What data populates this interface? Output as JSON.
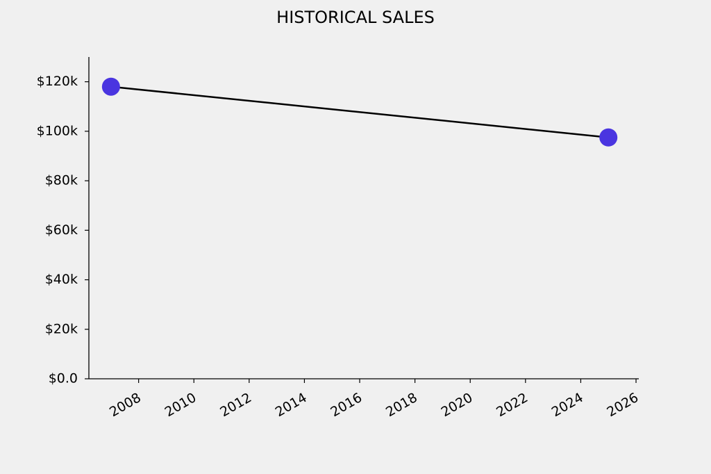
{
  "chart_data": {
    "type": "line",
    "title": "HISTORICAL SALES",
    "x": [
      2007,
      2025
    ],
    "series": [
      {
        "name": "Sales",
        "color": "#4a35e0",
        "line_color": "#000000",
        "values": [
          118000,
          97500
        ]
      }
    ],
    "xlim": [
      2006.2,
      2026.1
    ],
    "xticks": [
      2008,
      2010,
      2012,
      2014,
      2016,
      2018,
      2020,
      2022,
      2024,
      2026
    ],
    "ylim": [
      0,
      130000
    ],
    "yticks": [
      {
        "value": 0,
        "label": "$0.0"
      },
      {
        "value": 20000,
        "label": "$20k"
      },
      {
        "value": 40000,
        "label": "$40k"
      },
      {
        "value": 60000,
        "label": "$60k"
      },
      {
        "value": 80000,
        "label": "$80k"
      },
      {
        "value": 100000,
        "label": "$100k"
      },
      {
        "value": 120000,
        "label": "$120k"
      }
    ],
    "grid": false
  }
}
